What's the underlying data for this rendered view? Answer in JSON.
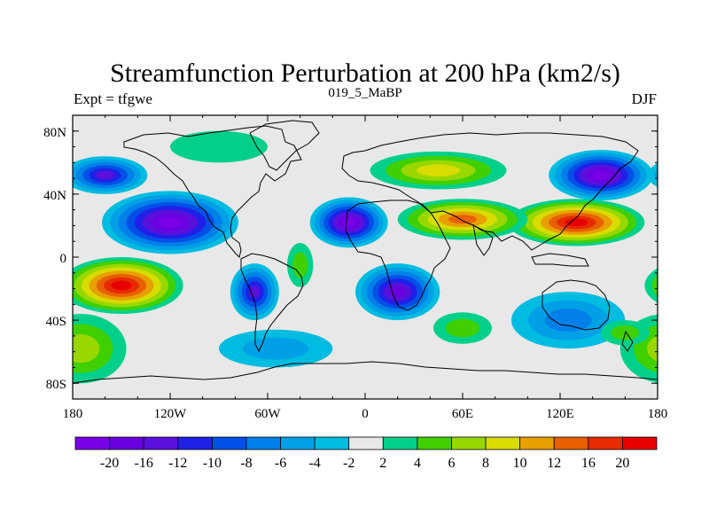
{
  "chart_data": {
    "type": "heatmap",
    "title": "Streamfunction Perturbation at 200 hPa (km2/s)",
    "subtitle_left": "Expt = tfgwe",
    "subtitle_center": "019_5_MaBP",
    "subtitle_right": "DJF",
    "x_ticks": [
      {
        "value": -180,
        "label": "180"
      },
      {
        "value": -120,
        "label": "120W"
      },
      {
        "value": -60,
        "label": "60W"
      },
      {
        "value": 0,
        "label": "0"
      },
      {
        "value": 60,
        "label": "60E"
      },
      {
        "value": 120,
        "label": "120E"
      },
      {
        "value": 180,
        "label": "180"
      }
    ],
    "y_ticks": [
      {
        "value": 80,
        "label": "80N"
      },
      {
        "value": 40,
        "label": "40N"
      },
      {
        "value": 0,
        "label": "0"
      },
      {
        "value": -40,
        "label": "40S"
      },
      {
        "value": -80,
        "label": "80S"
      }
    ],
    "xlim": [
      -180,
      180
    ],
    "ylim": [
      -90,
      90
    ],
    "colorbar": {
      "levels": [
        "-20",
        "-16",
        "-12",
        "-10",
        "-8",
        "-6",
        "-4",
        "-2",
        "2",
        "4",
        "6",
        "8",
        "10",
        "12",
        "16",
        "20"
      ],
      "colors": [
        "#7a00e6",
        "#6a00e0",
        "#5a10dc",
        "#2020e8",
        "#0050e8",
        "#0080e8",
        "#00a0e6",
        "#00bce0",
        "#e8e8e8",
        "#00d08a",
        "#40d000",
        "#98d800",
        "#d8dc00",
        "#e8a000",
        "#e86000",
        "#e82a00",
        "#e80000"
      ]
    },
    "centers": [
      {
        "lon": -120,
        "lat": 22,
        "value": -21,
        "rx": 42,
        "ry": 20
      },
      {
        "lon": -160,
        "lat": 52,
        "value": -14,
        "rx": 26,
        "ry": 12
      },
      {
        "lon": -10,
        "lat": 22,
        "value": -20,
        "rx": 24,
        "ry": 16
      },
      {
        "lon": 145,
        "lat": 52,
        "value": -20,
        "rx": 32,
        "ry": 16
      },
      {
        "lon": 130,
        "lat": 22,
        "value": 20,
        "rx": 42,
        "ry": 15
      },
      {
        "lon": 60,
        "lat": 24,
        "value": 13,
        "rx": 40,
        "ry": 13
      },
      {
        "lon": 45,
        "lat": 55,
        "value": 9,
        "rx": 42,
        "ry": 12
      },
      {
        "lon": -150,
        "lat": -18,
        "value": 20,
        "rx": 38,
        "ry": 18
      },
      {
        "lon": -175,
        "lat": -58,
        "value": 6,
        "rx": 28,
        "ry": 22
      },
      {
        "lon": -68,
        "lat": -22,
        "value": -14,
        "rx": 15,
        "ry": 18
      },
      {
        "lon": -55,
        "lat": -58,
        "value": -5,
        "rx": 35,
        "ry": 12
      },
      {
        "lon": 20,
        "lat": -22,
        "value": -16,
        "rx": 26,
        "ry": 18
      },
      {
        "lon": 125,
        "lat": -40,
        "value": -7,
        "rx": 35,
        "ry": 18
      },
      {
        "lon": 60,
        "lat": -45,
        "value": 4,
        "rx": 18,
        "ry": 10
      },
      {
        "lon": -90,
        "lat": 70,
        "value": 3,
        "rx": 30,
        "ry": 10
      },
      {
        "lon": 160,
        "lat": -48,
        "value": 5,
        "rx": 15,
        "ry": 8
      },
      {
        "lon": -40,
        "lat": -5,
        "value": 5,
        "rx": 8,
        "ry": 14
      }
    ]
  }
}
